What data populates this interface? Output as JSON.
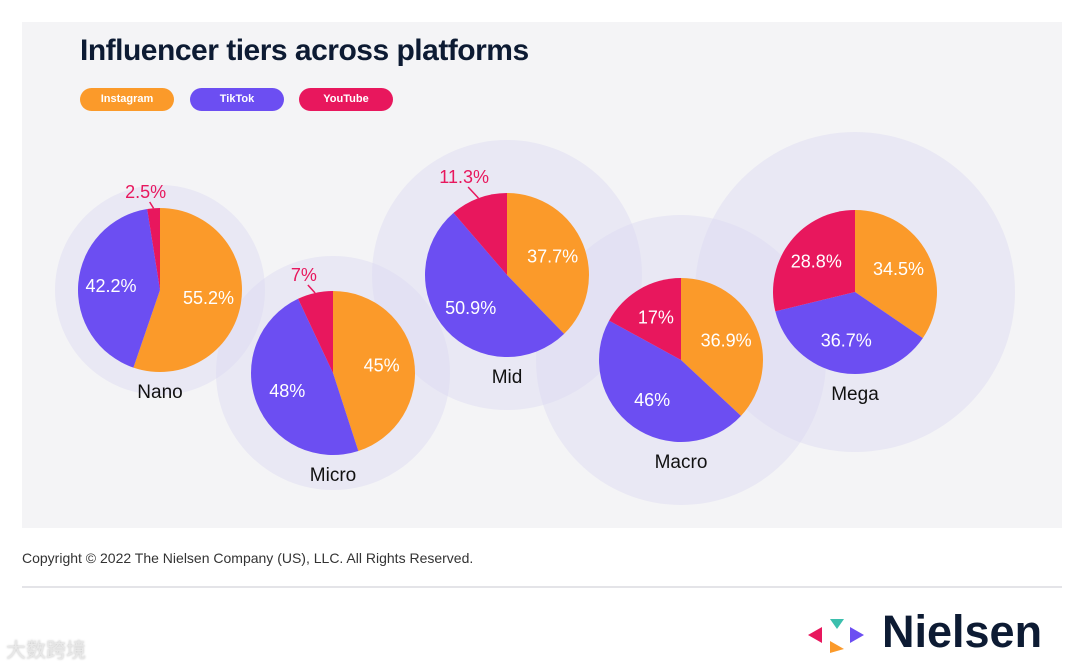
{
  "chart_data": {
    "type": "pie",
    "title": "Influencer tiers across platforms",
    "legend": [
      "Instagram",
      "TikTok",
      "YouTube"
    ],
    "legend_placement": "top-left",
    "colors": {
      "Instagram": "#fb9a2a",
      "TikTok": "#6c4ef2",
      "YouTube": "#e8175d"
    },
    "pies": [
      {
        "name": "Nano",
        "values": [
          55.2,
          42.2,
          2.5
        ],
        "labels": [
          "55.2%",
          "42.2%",
          "2.5%"
        ]
      },
      {
        "name": "Micro",
        "values": [
          45,
          48,
          7
        ],
        "labels": [
          "45%",
          "48%",
          "7%"
        ]
      },
      {
        "name": "Mid",
        "values": [
          37.7,
          50.9,
          11.3
        ],
        "labels": [
          "37.7%",
          "50.9%",
          "11.3%"
        ]
      },
      {
        "name": "Macro",
        "values": [
          36.9,
          46,
          17
        ],
        "labels": [
          "36.9%",
          "46%",
          "17%"
        ]
      },
      {
        "name": "Mega",
        "values": [
          34.5,
          36.7,
          28.8
        ],
        "labels": [
          "34.5%",
          "36.7%",
          "28.8%"
        ]
      }
    ]
  },
  "footer": {
    "copyright": "Copyright © 2022 The Nielsen Company (US), LLC. All Rights Reserved.",
    "brand": "Nielsen",
    "watermark": "大数跨境"
  }
}
